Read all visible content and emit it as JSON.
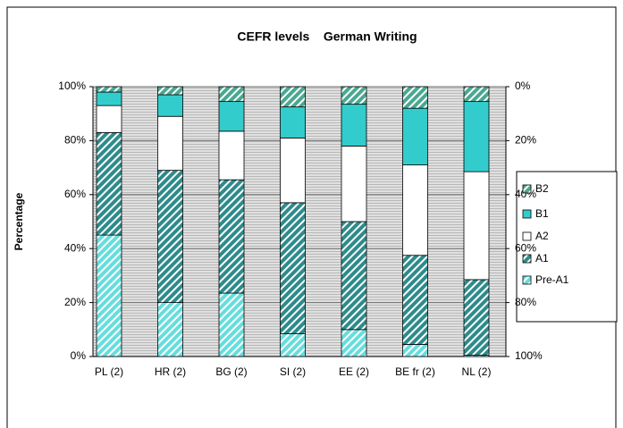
{
  "chart_data": {
    "type": "stacked_bar",
    "title": "CEFR levels    German Writing",
    "y_label": "Percentage",
    "categories": [
      "PL (2)",
      "HR (2)",
      "BG (2)",
      "SI (2)",
      "EE (2)",
      "BE fr (2)",
      "NL (2)"
    ],
    "series": [
      {
        "name": "Pre-A1",
        "color": "#66dddd",
        "hatch": true,
        "values": [
          45,
          20,
          23.5,
          8.5,
          10,
          4.5,
          0.5
        ]
      },
      {
        "name": "A1",
        "color": "#2e8b8b",
        "hatch": true,
        "values": [
          38,
          49,
          42,
          48.5,
          40,
          33,
          28
        ]
      },
      {
        "name": "A2",
        "color": "#ffffff",
        "hatch": false,
        "values": [
          10,
          20,
          18,
          24,
          28,
          33.5,
          40
        ]
      },
      {
        "name": "B1",
        "color": "#33cccc",
        "hatch": false,
        "values": [
          5,
          8,
          11,
          11.5,
          15.5,
          21,
          26
        ]
      },
      {
        "name": "B2",
        "color": "#4aa890",
        "hatch": true,
        "values": [
          2,
          3,
          5.5,
          7.5,
          6.5,
          8,
          5.5
        ]
      }
    ],
    "ylim": [
      0,
      100
    ],
    "yticks": [
      {
        "value": 0,
        "label": "0%"
      },
      {
        "value": 20,
        "label": "20%"
      },
      {
        "value": 40,
        "label": "40%"
      },
      {
        "value": 60,
        "label": "60%"
      },
      {
        "value": 80,
        "label": "80%"
      },
      {
        "value": 100,
        "label": "100%"
      }
    ],
    "y2lim": [
      100,
      0
    ],
    "y2ticks": [
      {
        "value": 0,
        "label": "0%"
      },
      {
        "value": 20,
        "label": "20%"
      },
      {
        "value": 40,
        "label": "40%"
      },
      {
        "value": 60,
        "label": "60%"
      },
      {
        "value": 80,
        "label": "80%"
      },
      {
        "value": 100,
        "label": "100%"
      }
    ],
    "grid": true,
    "legend": "right"
  }
}
